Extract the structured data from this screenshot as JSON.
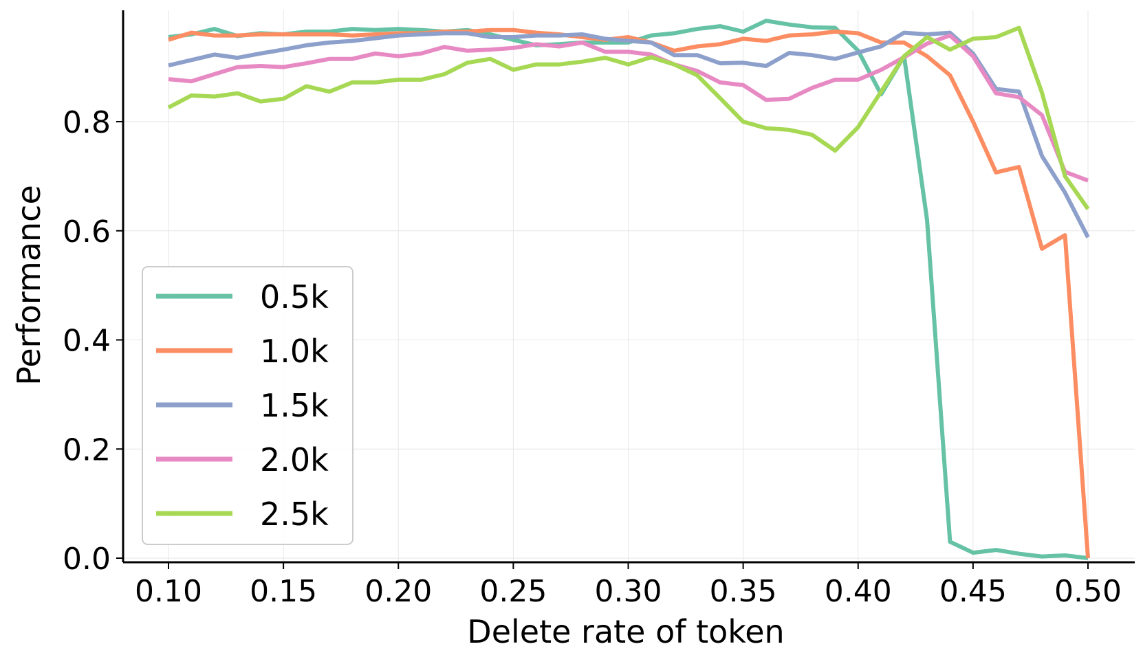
{
  "chart_data": {
    "type": "line",
    "title": "",
    "xlabel": "Delete rate of token",
    "ylabel": "Performance",
    "xlim": [
      0.08,
      0.52
    ],
    "ylim": [
      0.0,
      1.0
    ],
    "grid": true,
    "legend_position": "lower-left",
    "x_ticks": [
      {
        "value": 0.1,
        "label": "0.10"
      },
      {
        "value": 0.15,
        "label": "0.15"
      },
      {
        "value": 0.2,
        "label": "0.20"
      },
      {
        "value": 0.25,
        "label": "0.25"
      },
      {
        "value": 0.3,
        "label": "0.30"
      },
      {
        "value": 0.35,
        "label": "0.35"
      },
      {
        "value": 0.4,
        "label": "0.40"
      },
      {
        "value": 0.45,
        "label": "0.45"
      },
      {
        "value": 0.5,
        "label": "0.50"
      }
    ],
    "y_ticks": [
      {
        "value": 0.0,
        "label": "0.0"
      },
      {
        "value": 0.2,
        "label": "0.2"
      },
      {
        "value": 0.4,
        "label": "0.4"
      },
      {
        "value": 0.6,
        "label": "0.6"
      },
      {
        "value": 0.8,
        "label": "0.8"
      }
    ],
    "x": [
      0.1,
      0.11,
      0.12,
      0.13,
      0.14,
      0.15,
      0.16,
      0.17,
      0.18,
      0.19,
      0.2,
      0.21,
      0.22,
      0.23,
      0.24,
      0.25,
      0.26,
      0.27,
      0.28,
      0.29,
      0.3,
      0.31,
      0.32,
      0.33,
      0.34,
      0.35,
      0.36,
      0.37,
      0.38,
      0.39,
      0.4,
      0.41,
      0.42,
      0.43,
      0.44,
      0.45,
      0.46,
      0.47,
      0.48,
      0.49,
      0.5
    ],
    "series": [
      {
        "name": "0.5k",
        "color": "#66c2a5",
        "values": [
          0.955,
          0.96,
          0.97,
          0.957,
          0.962,
          0.96,
          0.965,
          0.965,
          0.97,
          0.968,
          0.97,
          0.968,
          0.965,
          0.968,
          0.96,
          0.95,
          0.94,
          0.942,
          0.945,
          0.945,
          0.945,
          0.958,
          0.962,
          0.97,
          0.975,
          0.965,
          0.985,
          0.978,
          0.973,
          0.972,
          0.93,
          0.85,
          0.92,
          0.62,
          0.03,
          0.01,
          0.015,
          0.008,
          0.003,
          0.005,
          0.0
        ]
      },
      {
        "name": "1.0k",
        "color": "#fc8d62",
        "values": [
          0.95,
          0.963,
          0.958,
          0.958,
          0.96,
          0.96,
          0.96,
          0.96,
          0.958,
          0.96,
          0.962,
          0.962,
          0.965,
          0.965,
          0.968,
          0.968,
          0.963,
          0.96,
          0.955,
          0.95,
          0.955,
          0.945,
          0.93,
          0.938,
          0.942,
          0.952,
          0.948,
          0.958,
          0.96,
          0.965,
          0.962,
          0.945,
          0.945,
          0.92,
          0.885,
          0.8,
          0.707,
          0.717,
          0.567,
          0.592,
          0.0
        ]
      },
      {
        "name": "1.5k",
        "color": "#8da0cb",
        "values": [
          0.903,
          0.913,
          0.923,
          0.917,
          0.925,
          0.932,
          0.94,
          0.945,
          0.948,
          0.953,
          0.958,
          0.96,
          0.962,
          0.962,
          0.955,
          0.955,
          0.958,
          0.958,
          0.96,
          0.952,
          0.948,
          0.945,
          0.922,
          0.922,
          0.907,
          0.908,
          0.902,
          0.926,
          0.922,
          0.915,
          0.927,
          0.938,
          0.963,
          0.96,
          0.963,
          0.925,
          0.86,
          0.855,
          0.737,
          0.67,
          0.588
        ]
      },
      {
        "name": "2.0k",
        "color": "#e78ac3",
        "values": [
          0.878,
          0.874,
          0.887,
          0.9,
          0.902,
          0.9,
          0.907,
          0.915,
          0.915,
          0.925,
          0.92,
          0.925,
          0.937,
          0.93,
          0.932,
          0.935,
          0.942,
          0.938,
          0.945,
          0.928,
          0.928,
          0.923,
          0.905,
          0.893,
          0.872,
          0.867,
          0.84,
          0.842,
          0.862,
          0.877,
          0.877,
          0.895,
          0.918,
          0.943,
          0.958,
          0.92,
          0.852,
          0.845,
          0.812,
          0.708,
          0.692
        ]
      },
      {
        "name": "2.5k",
        "color": "#a6d854",
        "values": [
          0.826,
          0.848,
          0.846,
          0.852,
          0.837,
          0.842,
          0.865,
          0.855,
          0.872,
          0.872,
          0.877,
          0.877,
          0.887,
          0.908,
          0.915,
          0.895,
          0.905,
          0.905,
          0.91,
          0.917,
          0.905,
          0.918,
          0.905,
          0.885,
          0.843,
          0.8,
          0.788,
          0.785,
          0.776,
          0.747,
          0.79,
          0.855,
          0.92,
          0.955,
          0.932,
          0.952,
          0.955,
          0.972,
          0.853,
          0.7,
          0.64
        ]
      }
    ]
  }
}
